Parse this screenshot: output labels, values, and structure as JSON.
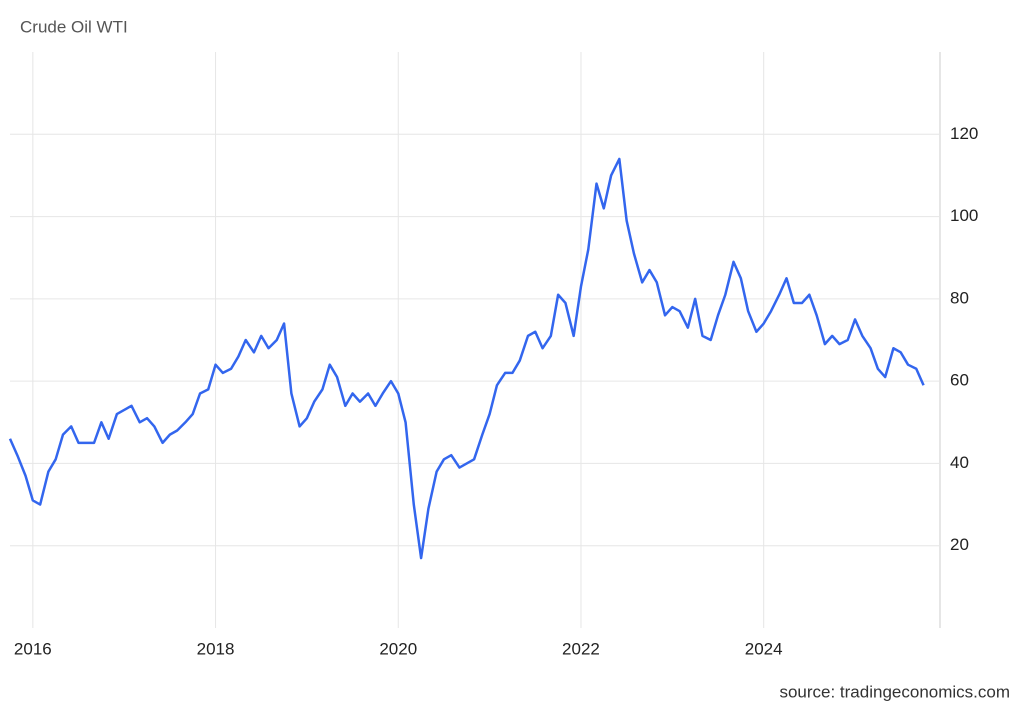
{
  "chart_data": {
    "type": "line",
    "title": "Crude Oil WTI",
    "source": "source: tradingeconomics.com",
    "x": [
      2015.75,
      2015.83,
      2015.92,
      2016.0,
      2016.08,
      2016.17,
      2016.25,
      2016.33,
      2016.42,
      2016.5,
      2016.58,
      2016.67,
      2016.75,
      2016.83,
      2016.92,
      2017.0,
      2017.08,
      2017.17,
      2017.25,
      2017.33,
      2017.42,
      2017.5,
      2017.58,
      2017.67,
      2017.75,
      2017.83,
      2017.92,
      2018.0,
      2018.08,
      2018.17,
      2018.25,
      2018.33,
      2018.42,
      2018.5,
      2018.58,
      2018.67,
      2018.75,
      2018.83,
      2018.92,
      2019.0,
      2019.08,
      2019.17,
      2019.25,
      2019.33,
      2019.42,
      2019.5,
      2019.58,
      2019.67,
      2019.75,
      2019.83,
      2019.92,
      2020.0,
      2020.08,
      2020.17,
      2020.25,
      2020.33,
      2020.42,
      2020.5,
      2020.58,
      2020.67,
      2020.75,
      2020.83,
      2020.92,
      2021.0,
      2021.08,
      2021.17,
      2021.25,
      2021.33,
      2021.42,
      2021.5,
      2021.58,
      2021.67,
      2021.75,
      2021.83,
      2021.92,
      2022.0,
      2022.08,
      2022.17,
      2022.25,
      2022.33,
      2022.42,
      2022.5,
      2022.58,
      2022.67,
      2022.75,
      2022.83,
      2022.92,
      2023.0,
      2023.08,
      2023.17,
      2023.25,
      2023.33,
      2023.42,
      2023.5,
      2023.58,
      2023.67,
      2023.75,
      2023.83,
      2023.92,
      2024.0,
      2024.08,
      2024.17,
      2024.25,
      2024.33,
      2024.42,
      2024.5,
      2024.58,
      2024.67,
      2024.75,
      2024.83,
      2024.92,
      2025.0,
      2025.08,
      2025.17,
      2025.25,
      2025.33,
      2025.42,
      2025.5,
      2025.58,
      2025.67,
      2025.75
    ],
    "values": [
      46,
      42,
      37,
      31,
      30,
      38,
      41,
      47,
      49,
      45,
      45,
      45,
      50,
      46,
      52,
      53,
      54,
      50,
      51,
      49,
      45,
      47,
      48,
      50,
      52,
      57,
      58,
      64,
      62,
      63,
      66,
      70,
      67,
      71,
      68,
      70,
      74,
      57,
      49,
      51,
      55,
      58,
      64,
      61,
      54,
      57,
      55,
      57,
      54,
      57,
      60,
      57,
      50,
      30,
      17,
      29,
      38,
      41,
      42,
      39,
      40,
      41,
      47,
      52,
      59,
      62,
      62,
      65,
      71,
      72,
      68,
      71,
      81,
      79,
      71,
      83,
      92,
      108,
      102,
      110,
      114,
      99,
      91,
      84,
      87,
      84,
      76,
      78,
      77,
      73,
      80,
      71,
      70,
      76,
      81,
      89,
      85,
      77,
      72,
      74,
      77,
      81,
      85,
      79,
      79,
      81,
      76,
      69,
      71,
      69,
      70,
      75,
      71,
      68,
      63,
      61,
      68,
      67,
      64,
      63,
      59
    ],
    "color": "#3366ee",
    "xlim": [
      2015.75,
      2025.93
    ],
    "ylim": [
      0,
      140
    ],
    "xticks": [
      2016,
      2018,
      2020,
      2022,
      2024
    ],
    "yticks": [
      20,
      40,
      60,
      80,
      100,
      120
    ],
    "grid": true
  }
}
